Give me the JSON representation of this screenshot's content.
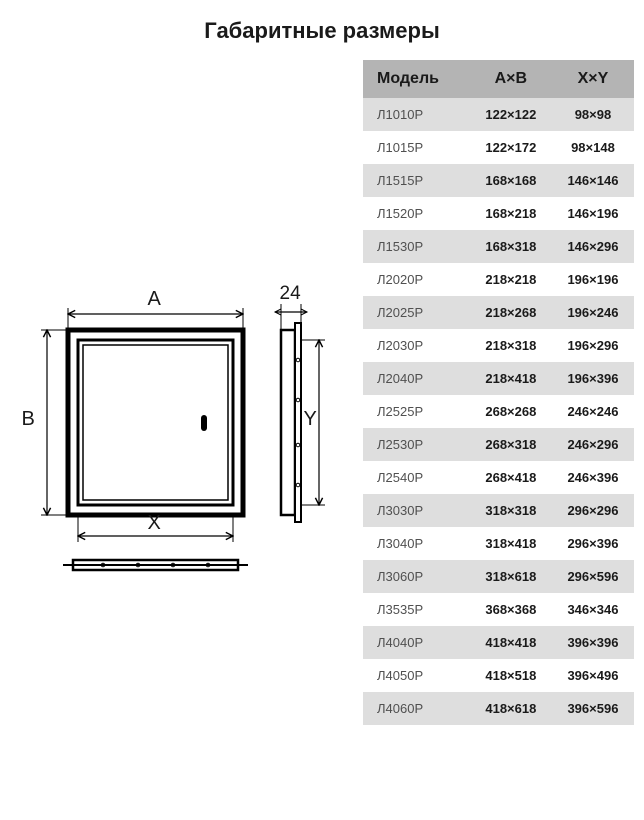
{
  "title": "Габаритные размеры",
  "table": {
    "header_bg": "#b4b4b4",
    "row_odd_bg": "#dedede",
    "row_even_bg": "#ffffff",
    "text_color": "#1a1a1a",
    "model_color": "#505050",
    "columns": [
      "Модель",
      "A×B",
      "X×Y"
    ],
    "rows": [
      [
        "Л1010Р",
        "122×122",
        "98×98"
      ],
      [
        "Л1015Р",
        "122×172",
        "98×148"
      ],
      [
        "Л1515Р",
        "168×168",
        "146×146"
      ],
      [
        "Л1520Р",
        "168×218",
        "146×196"
      ],
      [
        "Л1530Р",
        "168×318",
        "146×296"
      ],
      [
        "Л2020Р",
        "218×218",
        "196×196"
      ],
      [
        "Л2025Р",
        "218×268",
        "196×246"
      ],
      [
        "Л2030Р",
        "218×318",
        "196×296"
      ],
      [
        "Л2040Р",
        "218×418",
        "196×396"
      ],
      [
        "Л2525Р",
        "268×268",
        "246×246"
      ],
      [
        "Л2530Р",
        "268×318",
        "246×296"
      ],
      [
        "Л2540Р",
        "268×418",
        "246×396"
      ],
      [
        "Л3030Р",
        "318×318",
        "296×296"
      ],
      [
        "Л3040Р",
        "318×418",
        "296×396"
      ],
      [
        "Л3060Р",
        "318×618",
        "296×596"
      ],
      [
        "Л3535Р",
        "368×368",
        "346×346"
      ],
      [
        "Л4040Р",
        "418×418",
        "396×396"
      ],
      [
        "Л4050Р",
        "418×518",
        "396×496"
      ],
      [
        "Л4060Р",
        "418×618",
        "396×596"
      ]
    ]
  },
  "diagram": {
    "labels": {
      "A": "A",
      "B": "B",
      "X": "X",
      "Y": "Y",
      "depth": "24"
    },
    "stroke_color": "#000000",
    "fill_color": "#ffffff"
  }
}
